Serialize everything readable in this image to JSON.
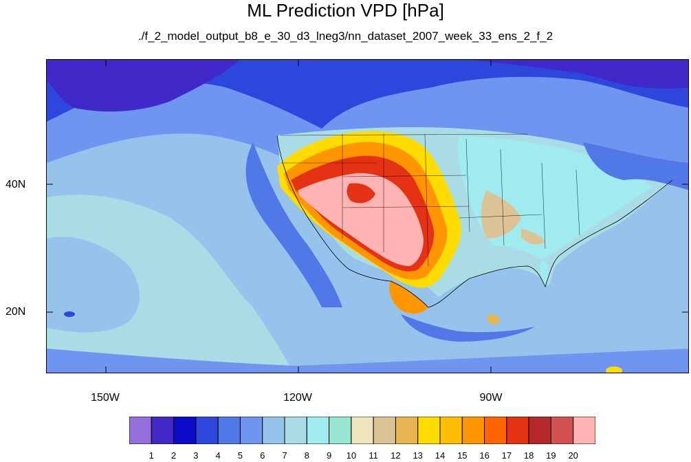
{
  "title": "ML Prediction VPD [hPa]",
  "subtitle": "./f_2_model_output_b8_e_30_d3_lneg3/nn_dataset_2007_week_33_ens_2_f_2",
  "lat_labels": [
    "40N",
    "20N"
  ],
  "lon_labels": [
    "150W",
    "120W",
    "90W"
  ],
  "colorbar": {
    "colors": [
      "#9370DB",
      "#4128C8",
      "#0B0BC8",
      "#2D46DC",
      "#5078E6",
      "#6E96F0",
      "#96C3EC",
      "#AADCE6",
      "#A0EBF0",
      "#96E6D2",
      "#F0E6BE",
      "#DCC396",
      "#E6B450",
      "#FFDC00",
      "#FFBE00",
      "#FF9600",
      "#FF6400",
      "#E63214",
      "#B42828",
      "#D25050",
      "#FFB4B4"
    ],
    "labels": [
      "1",
      "2",
      "3",
      "4",
      "5",
      "6",
      "7",
      "8",
      "9",
      "10",
      "11",
      "12",
      "13",
      "14",
      "15",
      "16",
      "17",
      "18",
      "19",
      "20"
    ]
  }
}
